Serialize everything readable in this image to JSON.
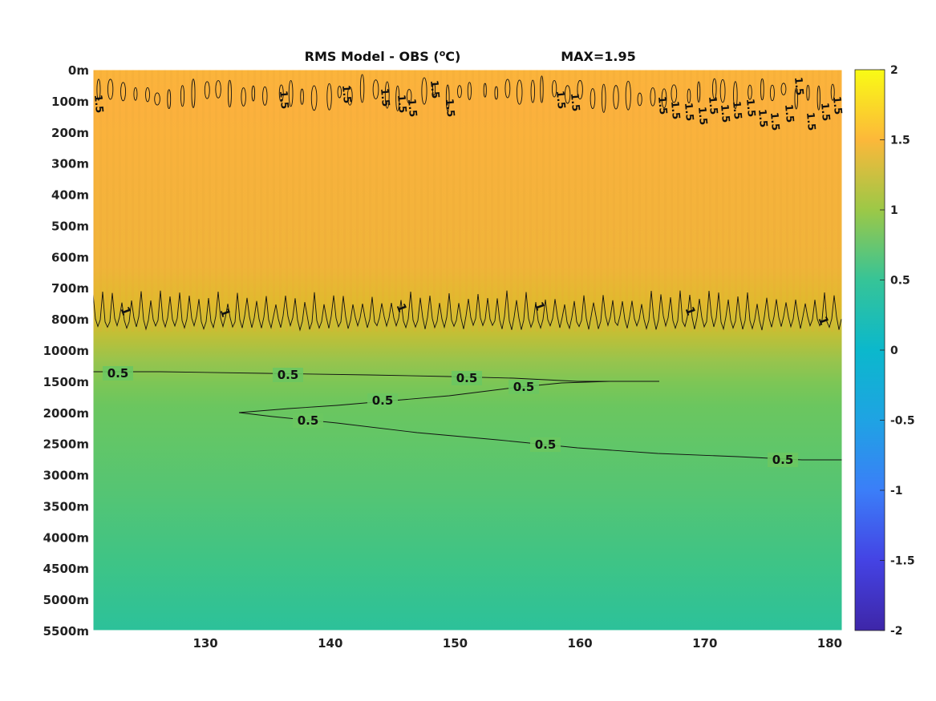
{
  "chart_data": {
    "type": "heatmap",
    "title": "RMS Model - OBS (",
    "title_sup": "o",
    "title_end": "C)",
    "max_label": "MAX=1.95",
    "xlabel": "",
    "ylabel": "",
    "xlim": [
      121,
      181
    ],
    "x_ticks": [
      130,
      140,
      150,
      160,
      170,
      180
    ],
    "x_tick_labels": [
      "130",
      "140",
      "150",
      "160",
      "170",
      "180"
    ],
    "y_tick_labels": [
      "0m",
      "100m",
      "200m",
      "300m",
      "400m",
      "500m",
      "600m",
      "700m",
      "800m",
      "1000m",
      "1500m",
      "2000m",
      "2500m",
      "3000m",
      "3500m",
      "4000m",
      "4500m",
      "5000m",
      "5500m"
    ],
    "colorbar": {
      "colormap": "parula",
      "clim": [
        -2,
        2
      ],
      "ticks": [
        -2,
        -1.5,
        -1,
        -0.5,
        0,
        0.5,
        1,
        1.5,
        2
      ],
      "tick_labels": [
        "-2",
        "-1.5",
        "-1",
        "-0.5",
        "0",
        "0.5",
        "1",
        "1.5",
        "2"
      ]
    },
    "depth_profile": {
      "level_index": [
        0,
        1,
        2,
        3,
        4,
        5,
        6,
        7,
        8,
        9,
        10,
        11,
        12,
        13,
        14,
        15,
        16,
        17,
        18
      ],
      "value": [
        1.45,
        1.5,
        1.45,
        1.4,
        1.37,
        1.32,
        1.28,
        1.2,
        1.05,
        0.9,
        0.55,
        0.5,
        0.45,
        0.42,
        0.38,
        0.35,
        0.32,
        0.3,
        0.28
      ]
    },
    "contours": [
      {
        "level": 1.5,
        "label": "1.5"
      },
      {
        "level": 1,
        "label": "1"
      },
      {
        "level": 0.5,
        "label": "0.5"
      }
    ],
    "grid": false,
    "legend": "none"
  }
}
